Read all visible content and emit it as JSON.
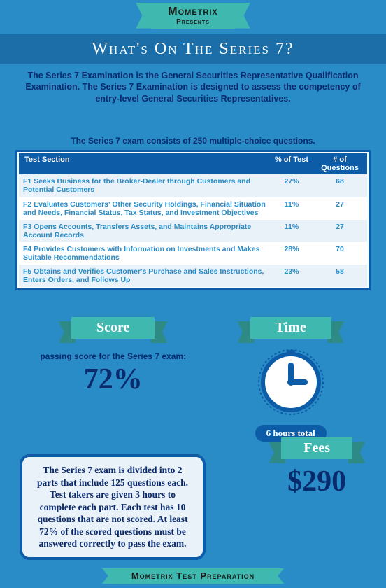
{
  "publisher": "Mometrix",
  "presents": "Presents",
  "title": "What's On The Series 7?",
  "subtitle": "The Series 7 Examination is the General Securities Representative Qualification Examination. The Series 7 Examination is designed to assess the competency of entry-level General Securities Representatives.",
  "consist_line": "The Series 7 exam consists of 250 multiple-choice questions.",
  "table": {
    "header": {
      "c1": "Test Section",
      "c2": "% of Test",
      "c3": "# of Questions"
    },
    "rows": [
      {
        "c1": "F1 Seeks Business for the Broker-Dealer through Customers and Potential Customers",
        "c2": "27%",
        "c3": "68"
      },
      {
        "c1": "F2 Evaluates Customers' Other Security Holdings, Financial Situation and Needs, Financial Status, Tax Status, and Investment Objectives",
        "c2": "11%",
        "c3": "27"
      },
      {
        "c1": "F3 Opens Accounts, Transfers Assets, and Maintains Appropriate Account Records",
        "c2": "11%",
        "c3": "27"
      },
      {
        "c1": "F4 Provides Customers with Information on Investments and Makes Suitable Recommendations",
        "c2": "28%",
        "c3": "70"
      },
      {
        "c1": "F5 Obtains and Verifies Customer's Purchase and Sales Instructions, Enters Orders, and Follows Up",
        "c2": "23%",
        "c3": "58"
      }
    ]
  },
  "score": {
    "label": "Score",
    "desc": "passing score for the Series 7 exam:",
    "value": "72%"
  },
  "time": {
    "label": "Time",
    "pill": "6 hours total"
  },
  "details": "The Series 7 exam is divided into 2 parts that include 125 questions each. Test takers are given 3 hours to complete each part. Each test has 10 questions that are not scored. At least 72% of the scored questions must be answered correctly to pass the exam.",
  "fees": {
    "label": "Fees",
    "value": "$290"
  },
  "footer": "Mometrix Test Preparation",
  "colors": {
    "page_bg": "#2a8cc7",
    "header_bg": "#1c6ea8",
    "banner_bg": "#3fb8af",
    "banner_shadow": "#2e8a84",
    "deep_blue": "#0d5ca8",
    "navy_text": "#0a2a6e",
    "row_alt": "#eaf2f9"
  }
}
